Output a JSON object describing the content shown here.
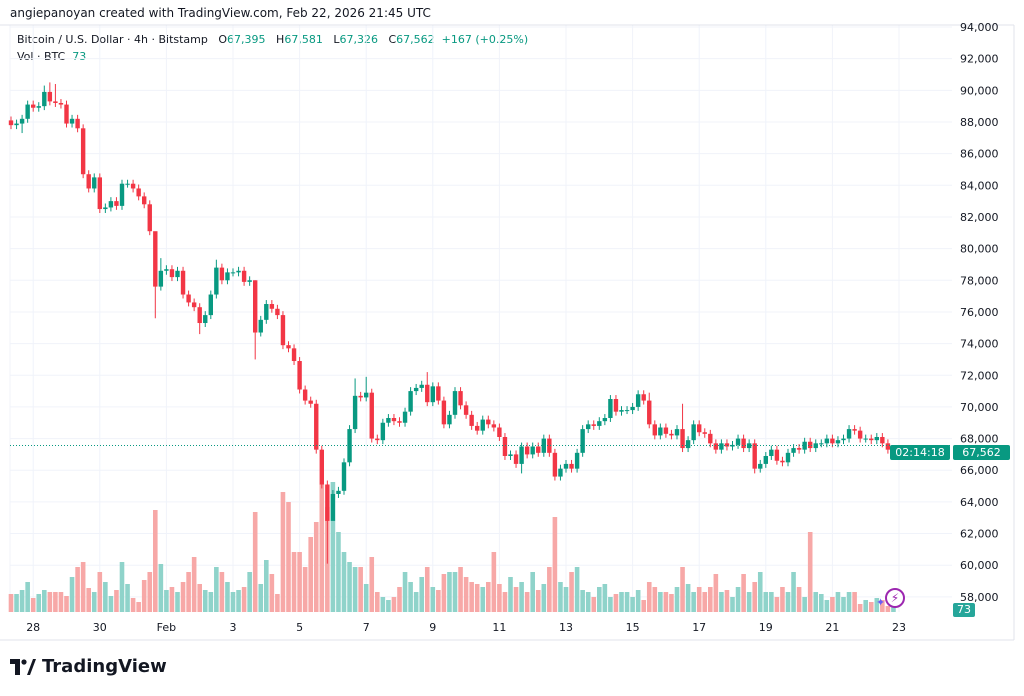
{
  "attribution": "angiepanoyan created with TradingView.com, Feb 22, 2026 21:45 UTC",
  "legend": {
    "symbol": "Bitcoin / U.S. Dollar · 4h · Bitstamp",
    "o_label": "O",
    "o": "67,395",
    "h_label": "H",
    "h": "67,581",
    "l_label": "L",
    "l": "67,326",
    "c_label": "C",
    "c": "67,562",
    "change": "+167 (+0.25%)",
    "vol_label": "Vol · BTC",
    "vol": "73"
  },
  "price_tag": {
    "price": "67,562",
    "countdown": "02:14:18"
  },
  "volume_tag": "73",
  "logo_text": "TradingView",
  "colors": {
    "up": "#089981",
    "down": "#f23645",
    "vol_up": "#8fd3ca",
    "vol_down": "#f7a8a7",
    "grid": "#f0f3fa",
    "last_line": "#089981"
  },
  "icons": {
    "lightning": "lightning-icon",
    "sparkle": "sparkle-icon"
  },
  "chart_data": {
    "type": "candlestick",
    "interval": "4h",
    "y_ticks": [
      "94,000",
      "92,000",
      "90,000",
      "88,000",
      "86,000",
      "84,000",
      "82,000",
      "80,000",
      "78,000",
      "76,000",
      "74,000",
      "72,000",
      "70,000",
      "68,000",
      "66,000",
      "64,000",
      "62,000",
      "60,000",
      "58,000"
    ],
    "y_tick_values": [
      94000,
      92000,
      90000,
      88000,
      86000,
      84000,
      82000,
      80000,
      78000,
      76000,
      74000,
      72000,
      70000,
      68000,
      66000,
      64000,
      62000,
      60000,
      58000
    ],
    "x_ticks": [
      {
        "label": "28",
        "candle_index": 4
      },
      {
        "label": "30",
        "candle_index": 16
      },
      {
        "label": "Feb",
        "candle_index": 28
      },
      {
        "label": "3",
        "candle_index": 40
      },
      {
        "label": "5",
        "candle_index": 52
      },
      {
        "label": "7",
        "candle_index": 64
      },
      {
        "label": "9",
        "candle_index": 76
      },
      {
        "label": "11",
        "candle_index": 88
      },
      {
        "label": "13",
        "candle_index": 100
      },
      {
        "label": "15",
        "candle_index": 112
      },
      {
        "label": "17",
        "candle_index": 124
      },
      {
        "label": "19",
        "candle_index": 136
      },
      {
        "label": "21",
        "candle_index": 148
      },
      {
        "label": "23",
        "candle_index": 160
      }
    ],
    "first_open": 88100,
    "close": [
      87800,
      87900,
      88200,
      89100,
      88900,
      89000,
      89900,
      89300,
      89200,
      89100,
      87900,
      88200,
      87600,
      84700,
      83800,
      84500,
      82500,
      82600,
      83000,
      82700,
      84100,
      84100,
      83800,
      83300,
      82800,
      81100,
      77600,
      78600,
      78700,
      78200,
      78600,
      77100,
      76600,
      76300,
      75300,
      75800,
      77100,
      78800,
      78000,
      78500,
      78500,
      78600,
      77900,
      78000,
      74700,
      75500,
      76500,
      76200,
      75800,
      73900,
      73700,
      72900,
      71100,
      70400,
      70200,
      67300,
      65100,
      62800,
      64500,
      64700,
      66500,
      68600,
      70700,
      70600,
      70900,
      68000,
      67900,
      69000,
      69300,
      69100,
      69000,
      69700,
      71000,
      71200,
      71400,
      70300,
      71300,
      70400,
      68900,
      69500,
      71000,
      70100,
      69500,
      68800,
      68500,
      69200,
      68900,
      68700,
      68100,
      66900,
      67000,
      66400,
      67500,
      67000,
      67500,
      67100,
      68000,
      67100,
      65600,
      66100,
      66400,
      66100,
      67100,
      68600,
      68900,
      68800,
      69100,
      69300,
      70500,
      69700,
      69800,
      69800,
      70000,
      70800,
      70400,
      68900,
      68200,
      68700,
      68300,
      68200,
      68600,
      67400,
      67900,
      68900,
      68400,
      68300,
      67700,
      67300,
      67700,
      67500,
      67600,
      68000,
      67400,
      67700,
      66100,
      66400,
      66900,
      67300,
      66600,
      66500,
      67100,
      67400,
      67300,
      67800,
      67400,
      67700,
      67700,
      68000,
      67700,
      67900,
      68000,
      68600,
      68500,
      68000,
      68000,
      67900,
      68100,
      67700,
      67300,
      67562
    ],
    "last_ohlc": [
      67395,
      67581,
      67326,
      67562
    ],
    "high_overrides": {
      "6": 90300,
      "7": 90500,
      "8": 90400,
      "26": 79300,
      "27": 79400,
      "37": 79300,
      "44": 78000,
      "62": 71800,
      "64": 71900,
      "75": 72200,
      "115": 70900,
      "121": 70200
    },
    "low_overrides": {
      "2": 87300,
      "26": 75600,
      "34": 74600,
      "44": 73000,
      "57": 60100,
      "58": 63000,
      "92": 65800,
      "134": 65800
    },
    "volume": [
      216,
      216,
      264,
      360,
      168,
      216,
      264,
      240,
      240,
      240,
      192,
      420,
      540,
      600,
      288,
      240,
      480,
      360,
      192,
      264,
      600,
      336,
      168,
      120,
      384,
      480,
      1224,
      576,
      264,
      300,
      240,
      360,
      480,
      660,
      336,
      264,
      240,
      540,
      480,
      360,
      240,
      264,
      300,
      480,
      1200,
      336,
      624,
      456,
      216,
      1440,
      1320,
      720,
      720,
      540,
      900,
      1080,
      1536,
      1260,
      1560,
      960,
      720,
      600,
      540,
      540,
      336,
      660,
      240,
      180,
      144,
      180,
      300,
      480,
      360,
      240,
      420,
      540,
      300,
      264,
      456,
      480,
      480,
      540,
      420,
      360,
      336,
      300,
      360,
      720,
      336,
      240,
      420,
      300,
      360,
      240,
      480,
      264,
      336,
      540,
      1140,
      360,
      300,
      480,
      540,
      264,
      240,
      180,
      300,
      336,
      180,
      216,
      240,
      240,
      180,
      264,
      144,
      360,
      300,
      240,
      240,
      216,
      300,
      540,
      336,
      240,
      300,
      240,
      300,
      456,
      240,
      264,
      180,
      300,
      456,
      240,
      360,
      480,
      240,
      240,
      180,
      300,
      240,
      480,
      300,
      180,
      960,
      240,
      216,
      144,
      180,
      240,
      180,
      240,
      240,
      96,
      144,
      120,
      168,
      144,
      72,
      73
    ]
  }
}
